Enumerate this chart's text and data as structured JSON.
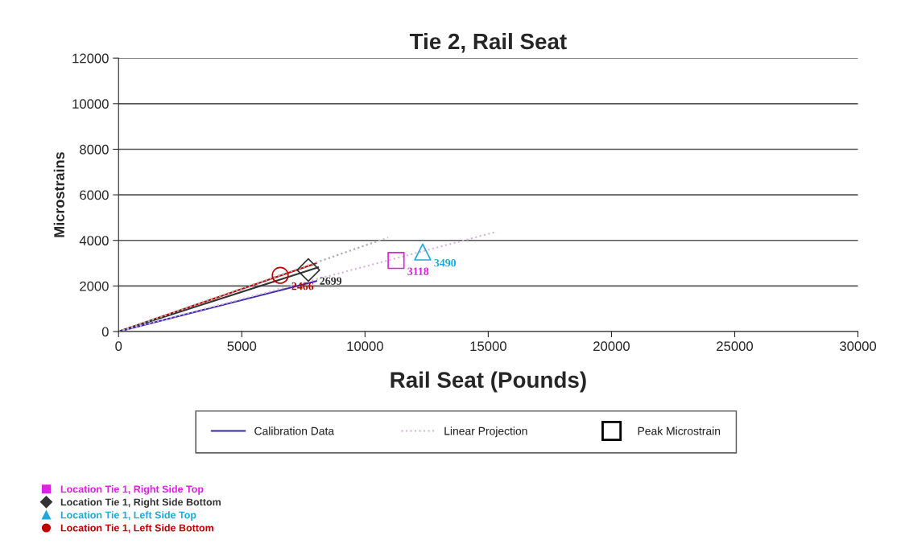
{
  "chart_data": {
    "type": "line",
    "title": "Tie 2, Rail Seat",
    "xlabel": "Rail Seat (Pounds)",
    "ylabel": "Microstrains",
    "xlim": [
      0,
      30000
    ],
    "xticks": [
      0,
      5000,
      10000,
      15000,
      20000,
      25000,
      30000
    ],
    "ylim": [
      0,
      12000
    ],
    "yticks": [
      0,
      2000,
      4000,
      6000,
      8000,
      10000,
      12000
    ],
    "grid": "y",
    "legend": "bottom",
    "annotations": [
      "Peak Microstrain"
    ],
    "series": [
      {
        "color": "#c00000",
        "line_style": "solid",
        "x": [
          0,
          8030
        ],
        "values": [
          0,
          3000
        ]
      },
      {
        "color": "#333333",
        "line_style": "solid",
        "x": [
          0,
          8100
        ],
        "values": [
          0,
          2820
        ]
      },
      {
        "name": "Calibration Data",
        "color": "#3b2fb0",
        "line_style": "solid",
        "x": [
          0,
          8030
        ],
        "values": [
          0,
          2220
        ]
      },
      {
        "color": "#c8c8c8",
        "line_style": "dotted",
        "x": [
          0,
          10940
        ],
        "values": [
          0,
          4130
        ]
      },
      {
        "color": "#b0b0b0",
        "line_style": "dotted",
        "x": [
          0,
          10640
        ],
        "values": [
          0,
          4020
        ]
      },
      {
        "name": "Linear Projection",
        "color": "#d8b0e0",
        "line_style": "dotted",
        "x": [
          0,
          15340
        ],
        "values": [
          0,
          4380
        ]
      },
      {
        "name": "Location Tie 1, Right Side Top",
        "type": "scatter",
        "marker": "square",
        "color": "#e020e0",
        "x": [
          11260
        ],
        "values": [
          3118
        ],
        "value_labels": [
          "3118"
        ]
      },
      {
        "name": "Location Tie 1, Right Side Bottom",
        "type": "scatter",
        "marker": "diamond",
        "color": "#333333",
        "x": [
          7700
        ],
        "values": [
          2699
        ],
        "value_labels": [
          "2699"
        ]
      },
      {
        "name": "Location Tie 1, Left Side Top",
        "type": "scatter",
        "marker": "triangle",
        "color": "#20a8d8",
        "x": [
          12340
        ],
        "values": [
          3490
        ],
        "value_labels": [
          "3490"
        ]
      },
      {
        "name": "Location Tie 1, Left Side Bottom",
        "type": "scatter",
        "marker": "circle",
        "color": "#c00000",
        "x": [
          6560
        ],
        "values": [
          2466
        ],
        "value_labels": [
          "2466"
        ]
      }
    ]
  }
}
